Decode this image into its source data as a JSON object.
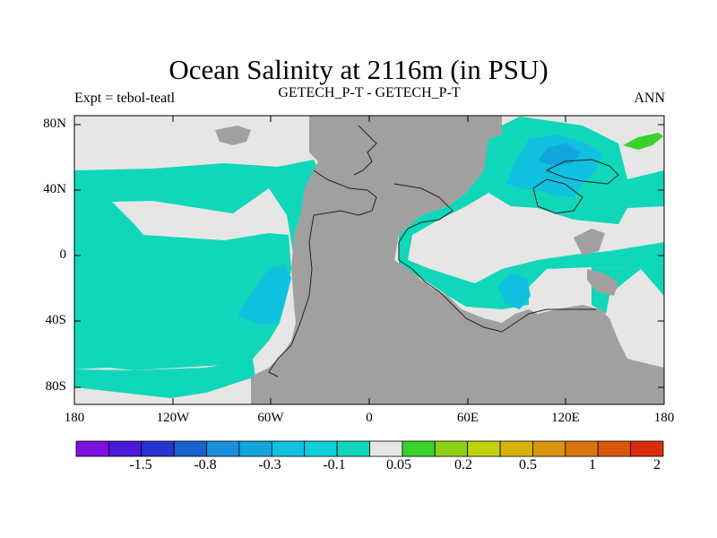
{
  "title": "Ocean Salinity at 2116m (in PSU)",
  "subtitle_left": "Expt = tebol-teatl",
  "subtitle_center": "GETECH_P-T - GETECH_P-T",
  "subtitle_right": "ANN",
  "lat_ticks": [
    "80N",
    "40N",
    "0",
    "40S",
    "80S"
  ],
  "lon_ticks": [
    "180",
    "120W",
    "60W",
    "0",
    "60E",
    "120E",
    "180"
  ],
  "colorbar": {
    "colors": [
      "#7c11e0",
      "#4a1ad9",
      "#2a33d0",
      "#1b62d1",
      "#1a8fdb",
      "#12a6dd",
      "#11c1e0",
      "#0fd0da",
      "#10d7b9",
      "#e6e6e6",
      "#39d12a",
      "#8fcf15",
      "#c1d20d",
      "#d5b30c",
      "#d9950d",
      "#d9750c",
      "#d9560d",
      "#d82c0c"
    ],
    "labels": [
      "-1.5",
      "-0.8",
      "-0.3",
      "-0.1",
      "0.05",
      "0.2",
      "0.5",
      "1",
      "2"
    ]
  },
  "map_colors": {
    "ocean_main": "#10d7b9",
    "ocean_light": "#e6e6e6",
    "land": "#a0a0a0",
    "neg_medium": "#11c1e0",
    "neg_strong": "#12a6dd",
    "pos_green": "#39d12a"
  }
}
